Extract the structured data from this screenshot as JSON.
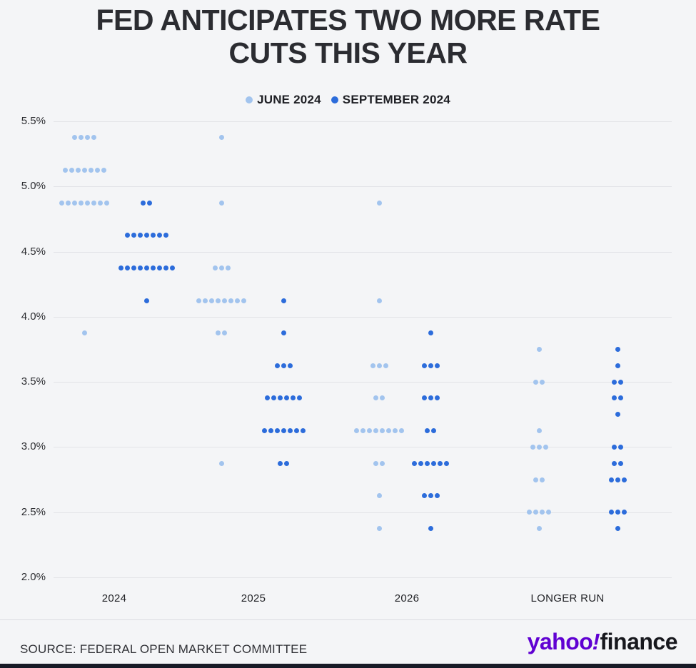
{
  "chart_data": {
    "type": "scatter",
    "title": "FED ANTICIPATES TWO MORE RATE CUTS THIS YEAR",
    "title_lines": [
      "FED ANTICIPATES TWO MORE RATE",
      "CUTS THIS YEAR"
    ],
    "categories": [
      "2024",
      "2025",
      "2026",
      "LONGER RUN"
    ],
    "ylim": [
      2.0,
      5.5
    ],
    "yticks": [
      2.0,
      2.5,
      3.0,
      3.5,
      4.0,
      4.5,
      5.0,
      5.5
    ],
    "ytick_labels": [
      "2.0%",
      "2.5%",
      "3.0%",
      "3.5%",
      "4.0%",
      "4.5%",
      "5.0%",
      "5.5%"
    ],
    "grid": true,
    "legend_position": "top-center",
    "legend": [
      {
        "name": "JUNE 2024",
        "color": "#a2c4ee"
      },
      {
        "name": "SEPTEMBER 2024",
        "color": "#2c6cdb"
      }
    ],
    "series": [
      {
        "name": "JUNE 2024",
        "color": "#a2c4ee",
        "points": [
          {
            "category": "2024",
            "rate": 5.375,
            "count": 4
          },
          {
            "category": "2024",
            "rate": 5.125,
            "count": 7
          },
          {
            "category": "2024",
            "rate": 4.875,
            "count": 8
          },
          {
            "category": "2024",
            "rate": 3.875,
            "count": 1
          },
          {
            "category": "2025",
            "rate": 5.375,
            "count": 1
          },
          {
            "category": "2025",
            "rate": 4.875,
            "count": 1
          },
          {
            "category": "2025",
            "rate": 4.375,
            "count": 3
          },
          {
            "category": "2025",
            "rate": 4.125,
            "count": 8
          },
          {
            "category": "2025",
            "rate": 3.875,
            "count": 2
          },
          {
            "category": "2025",
            "rate": 2.875,
            "count": 1
          },
          {
            "category": "2026",
            "rate": 4.875,
            "count": 1
          },
          {
            "category": "2026",
            "rate": 4.125,
            "count": 1
          },
          {
            "category": "2026",
            "rate": 3.625,
            "count": 3
          },
          {
            "category": "2026",
            "rate": 3.375,
            "count": 2
          },
          {
            "category": "2026",
            "rate": 3.125,
            "count": 8
          },
          {
            "category": "2026",
            "rate": 2.875,
            "count": 2
          },
          {
            "category": "2026",
            "rate": 2.625,
            "count": 1
          },
          {
            "category": "2026",
            "rate": 2.375,
            "count": 1
          },
          {
            "category": "LONGER RUN",
            "rate": 3.75,
            "count": 1
          },
          {
            "category": "LONGER RUN",
            "rate": 3.5,
            "count": 2
          },
          {
            "category": "LONGER RUN",
            "rate": 3.125,
            "count": 1
          },
          {
            "category": "LONGER RUN",
            "rate": 3.0,
            "count": 3
          },
          {
            "category": "LONGER RUN",
            "rate": 2.75,
            "count": 2
          },
          {
            "category": "LONGER RUN",
            "rate": 2.5,
            "count": 4
          },
          {
            "category": "LONGER RUN",
            "rate": 2.375,
            "count": 1
          }
        ]
      },
      {
        "name": "SEPTEMBER 2024",
        "color": "#2c6cdb",
        "points": [
          {
            "category": "2024",
            "rate": 4.875,
            "count": 2
          },
          {
            "category": "2024",
            "rate": 4.625,
            "count": 7
          },
          {
            "category": "2024",
            "rate": 4.375,
            "count": 9
          },
          {
            "category": "2024",
            "rate": 4.125,
            "count": 1
          },
          {
            "category": "2025",
            "rate": 4.125,
            "count": 1
          },
          {
            "category": "2025",
            "rate": 3.875,
            "count": 1
          },
          {
            "category": "2025",
            "rate": 3.625,
            "count": 3
          },
          {
            "category": "2025",
            "rate": 3.375,
            "count": 6
          },
          {
            "category": "2025",
            "rate": 3.125,
            "count": 7
          },
          {
            "category": "2025",
            "rate": 2.875,
            "count": 2
          },
          {
            "category": "2026",
            "rate": 3.875,
            "count": 1
          },
          {
            "category": "2026",
            "rate": 3.625,
            "count": 3
          },
          {
            "category": "2026",
            "rate": 3.375,
            "count": 3
          },
          {
            "category": "2026",
            "rate": 3.125,
            "count": 2
          },
          {
            "category": "2026",
            "rate": 2.875,
            "count": 6
          },
          {
            "category": "2026",
            "rate": 2.625,
            "count": 3
          },
          {
            "category": "2026",
            "rate": 2.375,
            "count": 1
          },
          {
            "category": "LONGER RUN",
            "rate": 3.75,
            "count": 1
          },
          {
            "category": "LONGER RUN",
            "rate": 3.625,
            "count": 1
          },
          {
            "category": "LONGER RUN",
            "rate": 3.5,
            "count": 2
          },
          {
            "category": "LONGER RUN",
            "rate": 3.375,
            "count": 2
          },
          {
            "category": "LONGER RUN",
            "rate": 3.25,
            "count": 1
          },
          {
            "category": "LONGER RUN",
            "rate": 3.0,
            "count": 2
          },
          {
            "category": "LONGER RUN",
            "rate": 2.875,
            "count": 2
          },
          {
            "category": "LONGER RUN",
            "rate": 2.75,
            "count": 3
          },
          {
            "category": "LONGER RUN",
            "rate": 2.5,
            "count": 3
          },
          {
            "category": "LONGER RUN",
            "rate": 2.375,
            "count": 1
          }
        ]
      }
    ]
  },
  "footer": {
    "source": "SOURCE: FEDERAL OPEN MARKET COMMITTEE",
    "brand": {
      "yahoo": "yahoo",
      "bang": "!",
      "finance": "finance"
    },
    "brand_colors": {
      "yahoo_purple": "#6001d2",
      "finance_black": "#17181d"
    }
  }
}
